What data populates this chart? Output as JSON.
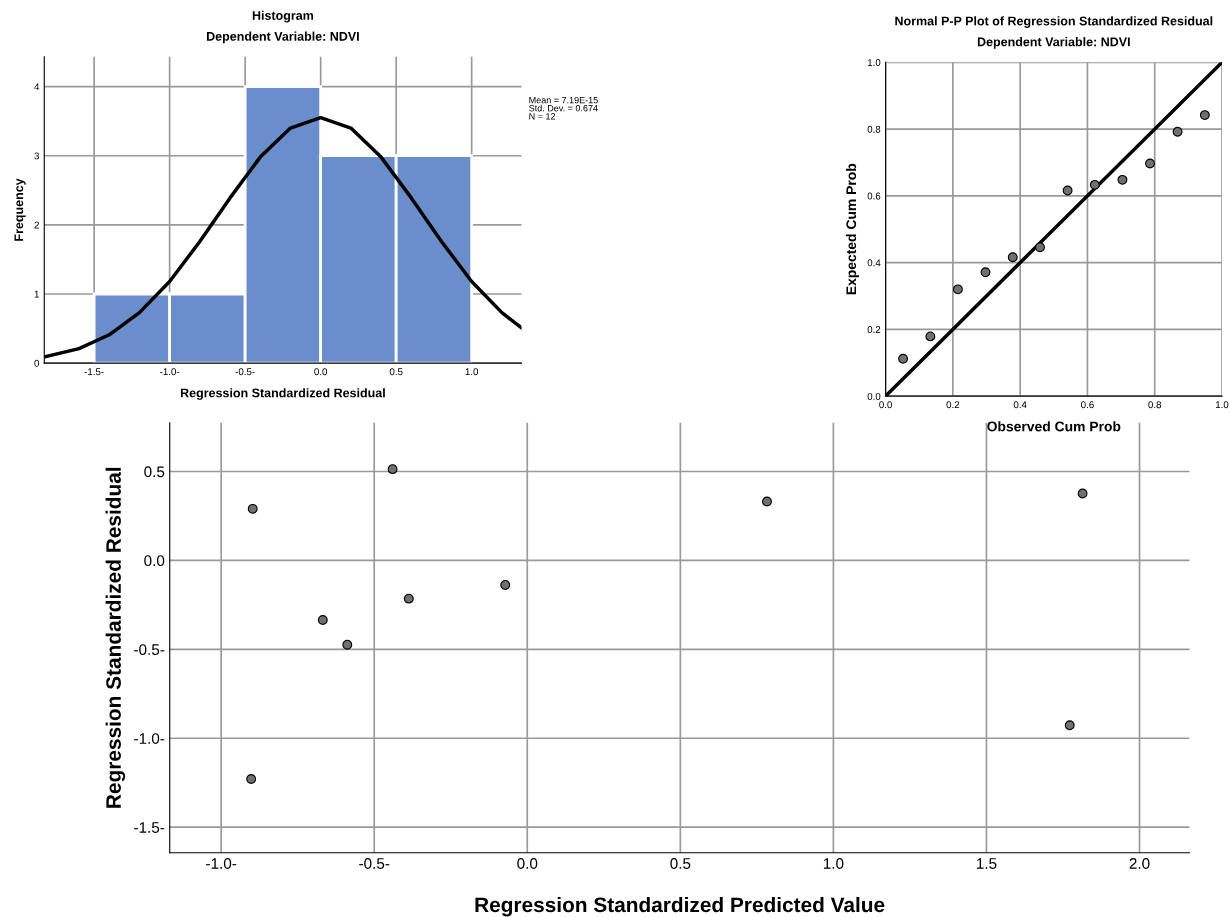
{
  "chart_data": [
    {
      "type": "histogram",
      "title": "Histogram",
      "subtitle": "Dependent Variable: NDVI",
      "xlabel": "Regression Standardized Residual",
      "ylabel": "Frequency",
      "bins": [
        -1.5,
        -1.0,
        -0.5,
        0.0,
        0.5,
        1.0
      ],
      "values": [
        1,
        1,
        4,
        3,
        3
      ],
      "color": "#6a8dcc",
      "series": [
        {
          "type": "line",
          "color": "#000000",
          "x": [
            -1.83,
            -1.6,
            -1.4,
            -1.2,
            -1.0,
            -0.8,
            -0.6,
            -0.4,
            -0.2,
            0.0,
            0.2,
            0.4,
            0.6,
            0.8,
            1.0,
            1.2,
            1.33
          ],
          "values": [
            0.09,
            0.21,
            0.41,
            0.73,
            1.18,
            1.76,
            2.39,
            2.98,
            3.4,
            3.55,
            3.4,
            2.98,
            2.39,
            1.76,
            1.18,
            0.73,
            0.51
          ]
        }
      ],
      "xlim": [
        -1.83,
        1.33
      ],
      "ylim": [
        0,
        4.43
      ],
      "xticks": [
        {
          "value": -1.5,
          "label": "-1.5-"
        },
        {
          "value": -1.0,
          "label": "-1.0-"
        },
        {
          "value": -0.5,
          "label": "-0.5-"
        },
        {
          "value": 0.0,
          "label": "0.0"
        },
        {
          "value": 0.5,
          "label": "0.5"
        },
        {
          "value": 1.0,
          "label": "1.0"
        }
      ],
      "yticks": [
        0,
        1,
        2,
        3,
        4
      ],
      "grid": true,
      "annotations": [
        "Mean = 7.19E-15\nStd. Dev. = 0.674\nN = 12"
      ]
    },
    {
      "type": "scatter",
      "title": "Normal P-P Plot of Regression Standardized Residual",
      "subtitle": "Dependent Variable: NDVI",
      "xlabel": "Observed Cum Prob",
      "ylabel": "Expected Cum Prob",
      "series": [
        {
          "type": "scatter",
          "marker": "circle",
          "color": "#707070",
          "x": [
            0.052,
            0.133,
            0.215,
            0.297,
            0.378,
            0.459,
            0.541,
            0.622,
            0.704,
            0.786,
            0.868,
            0.949
          ],
          "values": [
            0.112,
            0.179,
            0.32,
            0.371,
            0.416,
            0.446,
            0.616,
            0.633,
            0.648,
            0.697,
            0.792,
            0.842
          ]
        },
        {
          "type": "line",
          "color": "#000000",
          "x": [
            0.0,
            1.0
          ],
          "values": [
            0.0,
            1.0
          ]
        }
      ],
      "xlim": [
        0,
        1
      ],
      "ylim": [
        0,
        1
      ],
      "xticks": [
        {
          "value": 0,
          "label": "0.0"
        },
        {
          "value": 0.2,
          "label": "0.2"
        },
        {
          "value": 0.4,
          "label": "0.4"
        },
        {
          "value": 0.6,
          "label": "0.6"
        },
        {
          "value": 0.8,
          "label": "0.8"
        },
        {
          "value": 1,
          "label": "1.0"
        }
      ],
      "yticks": [
        {
          "value": 0,
          "label": "0.0"
        },
        {
          "value": 0.2,
          "label": "0.2"
        },
        {
          "value": 0.4,
          "label": "0.4"
        },
        {
          "value": 0.6,
          "label": "0.6"
        },
        {
          "value": 0.8,
          "label": "0.8"
        },
        {
          "value": 1,
          "label": "1.0"
        }
      ],
      "grid": true
    },
    {
      "type": "scatter",
      "xlabel": "Regression Standardized Predicted Value",
      "ylabel": "Regression Standardized Residual",
      "marker": "circle",
      "series": [
        {
          "type": "scatter",
          "color": "#707070",
          "x": [
            -0.897,
            -0.44,
            -0.668,
            -0.588,
            -0.387,
            -0.072,
            -0.902,
            0.783,
            1.814,
            1.772
          ],
          "values": [
            0.29,
            0.513,
            -0.335,
            -0.474,
            -0.215,
            -0.138,
            -1.229,
            0.331,
            0.376,
            -0.927
          ]
        }
      ],
      "xlim": [
        -1.168,
        2.163
      ],
      "ylim": [
        -1.644,
        0.774
      ],
      "xticks": [
        {
          "value": -1.0,
          "label": "-1.0-"
        },
        {
          "value": -0.5,
          "label": "-0.5-"
        },
        {
          "value": 0.0,
          "label": "0.0"
        },
        {
          "value": 0.5,
          "label": "0.5"
        },
        {
          "value": 1.0,
          "label": "1.0"
        },
        {
          "value": 1.5,
          "label": "1.5"
        },
        {
          "value": 2.0,
          "label": "2.0"
        }
      ],
      "yticks": [
        {
          "value": -1.5,
          "label": "-1.5-"
        },
        {
          "value": -1.0,
          "label": "-1.0-"
        },
        {
          "value": -0.5,
          "label": "-0.5-"
        },
        {
          "value": 0.0,
          "label": "0.0"
        },
        {
          "value": 0.5,
          "label": "0.5"
        }
      ],
      "grid": true
    }
  ]
}
